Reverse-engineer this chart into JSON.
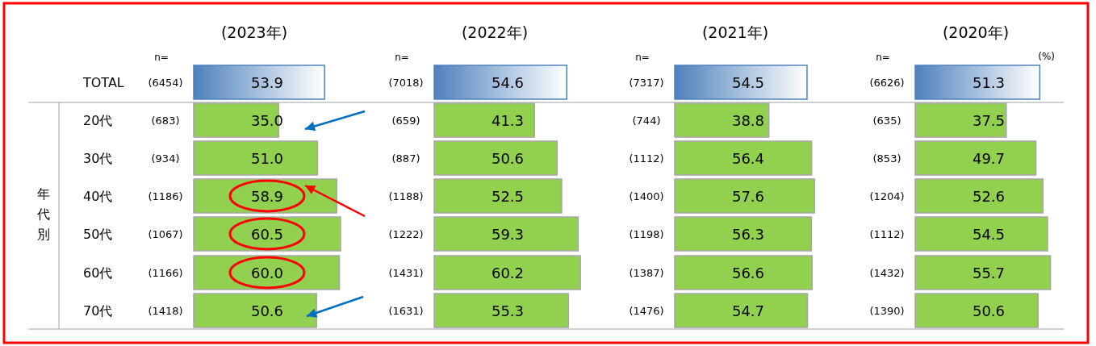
{
  "chart_data": [
    {
      "type": "bar",
      "orientation": "horizontal",
      "title": "(2023年)",
      "categories": [
        "TOTAL",
        "20代",
        "30代",
        "40代",
        "50代",
        "60代",
        "70代"
      ],
      "values": [
        53.9,
        35.0,
        51.0,
        58.9,
        60.5,
        60.0,
        50.6
      ],
      "colors": [
        "#4f81bd",
        "#92d050",
        "#92d050",
        "#92d050",
        "#92d050",
        "#92d050",
        "#92d050"
      ],
      "value_labels": [
        "53.9",
        "35.0",
        "51.0",
        "58.9",
        "60.5",
        "60.0",
        "50.6"
      ],
      "tick_labels": "y",
      "annotations": [
        "n=",
        "(6454)",
        "(683)",
        "(934)",
        "(1186)",
        "(1067)",
        "(1166)",
        "(1418)",
        "年代別"
      ]
    },
    {
      "type": "bar",
      "orientation": "horizontal",
      "title": "(2022年)",
      "values": [
        54.6,
        41.3,
        50.6,
        52.5,
        59.3,
        60.2,
        55.3
      ],
      "colors": [
        "#4f81bd",
        "#92d050",
        "#92d050",
        "#92d050",
        "#92d050",
        "#92d050",
        "#92d050"
      ],
      "value_labels": [
        "54.6",
        "41.3",
        "50.6",
        "52.5",
        "59.3",
        "60.2",
        "55.3"
      ],
      "tick_labels": false,
      "annotations": [
        "n=",
        "(7018)",
        "(659)",
        "(887)",
        "(1188)",
        "(1222)",
        "(1431)",
        "(1631)"
      ]
    },
    {
      "type": "bar",
      "orientation": "horizontal",
      "title": "(2021年)",
      "values": [
        54.5,
        38.8,
        56.4,
        57.6,
        56.3,
        56.6,
        54.7
      ],
      "colors": [
        "#4f81bd",
        "#92d050",
        "#92d050",
        "#92d050",
        "#92d050",
        "#92d050",
        "#92d050"
      ],
      "value_labels": [
        "54.5",
        "38.8",
        "56.4",
        "57.6",
        "56.3",
        "56.6",
        "54.7"
      ],
      "tick_labels": false,
      "annotations": [
        "n=",
        "(7317)",
        "(744)",
        "(1112)",
        "(1400)",
        "(1198)",
        "(1387)",
        "(1476)"
      ]
    },
    {
      "type": "bar",
      "orientation": "horizontal",
      "title": "(2020年)",
      "values": [
        51.3,
        37.5,
        49.7,
        52.6,
        54.5,
        55.7,
        50.6
      ],
      "colors": [
        "#4f81bd",
        "#92d050",
        "#92d050",
        "#92d050",
        "#92d050",
        "#92d050",
        "#92d050"
      ],
      "value_labels": [
        "51.3",
        "37.5",
        "49.7",
        "52.6",
        "54.5",
        "55.7",
        "50.6"
      ],
      "tick_labels": false,
      "annotations": [
        "n=",
        "(6626)",
        "(635)",
        "(853)",
        "(1204)",
        "(1112)",
        "(1432)",
        "(1390)",
        "(%)"
      ]
    }
  ]
}
